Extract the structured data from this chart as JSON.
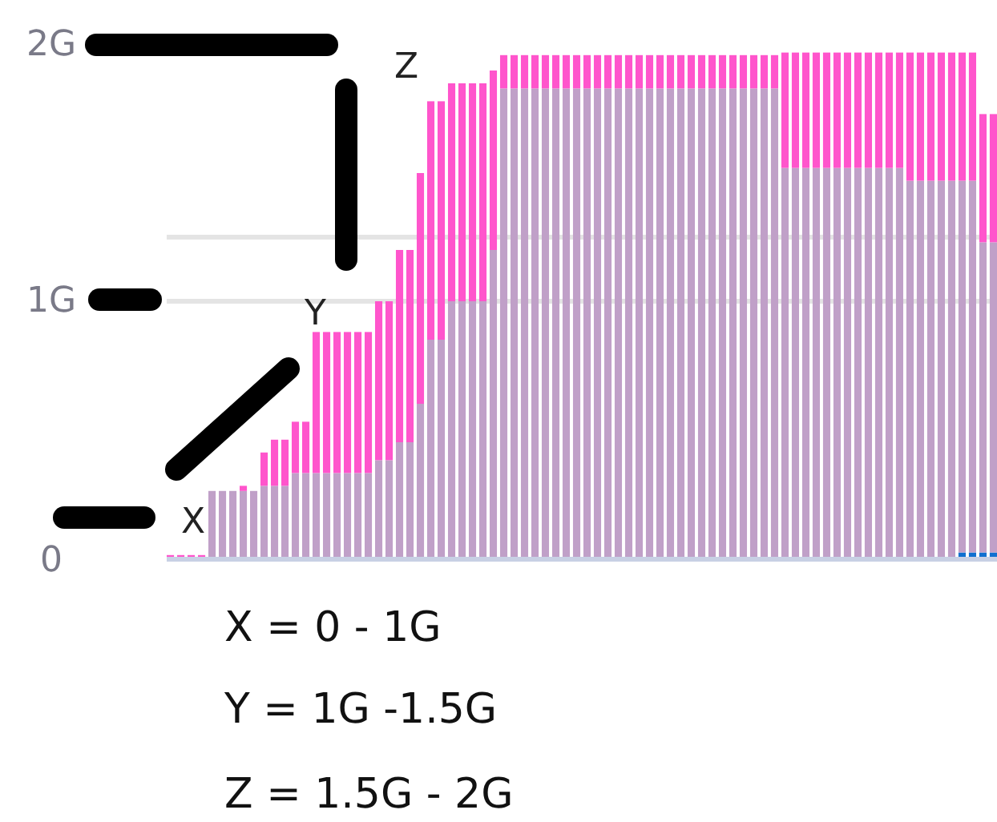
{
  "chart_data": {
    "type": "bar",
    "stacked": true,
    "categories": [
      null,
      null,
      null,
      null,
      null,
      null,
      null,
      null,
      null,
      null,
      null,
      null,
      null,
      null,
      null,
      null,
      null,
      null,
      null,
      null,
      null,
      null,
      null,
      null,
      null,
      null,
      null,
      null,
      null,
      null,
      null,
      null,
      null,
      null,
      null,
      null,
      null,
      null,
      null,
      null,
      null,
      null,
      null,
      null,
      null,
      null,
      null,
      null,
      null,
      null,
      null,
      null,
      null,
      null,
      null,
      null,
      null,
      null,
      null,
      null,
      null,
      null,
      null,
      null,
      null,
      null,
      null,
      null,
      null,
      null,
      null,
      null,
      null,
      null,
      null,
      null,
      null,
      null,
      null,
      null
    ],
    "series": [
      {
        "color": "#1070d0",
        "values": [
          0,
          0,
          0,
          0,
          0,
          0,
          0,
          0,
          0,
          0,
          0,
          0,
          0,
          0,
          0,
          0,
          0,
          0,
          0,
          0,
          0,
          0,
          0,
          0,
          0,
          0,
          0,
          0,
          0,
          0,
          0,
          0,
          0,
          0,
          0,
          0,
          0,
          0,
          0,
          0,
          0,
          0,
          0,
          0,
          0,
          0,
          0,
          0,
          0,
          0,
          0,
          0,
          0,
          0,
          0,
          0,
          0,
          0,
          0,
          0,
          0,
          0,
          0,
          0,
          0,
          0,
          0,
          0,
          0,
          0,
          0,
          0,
          0,
          0,
          0,
          0,
          0.02,
          0.02,
          0.02,
          0.02
        ]
      },
      {
        "color": "#c0a0c8",
        "values": [
          0,
          0,
          0,
          0,
          0.26,
          0.26,
          0.26,
          0.26,
          0.26,
          0.28,
          0.28,
          0.28,
          0.33,
          0.33,
          0.33,
          0.33,
          0.33,
          0.33,
          0.33,
          0.33,
          0.38,
          0.38,
          0.45,
          0.45,
          0.6,
          0.85,
          0.85,
          1.0,
          1.0,
          1.0,
          1.0,
          1.2,
          1.83,
          1.83,
          1.83,
          1.83,
          1.83,
          1.83,
          1.83,
          1.83,
          1.83,
          1.83,
          1.83,
          1.83,
          1.83,
          1.83,
          1.83,
          1.83,
          1.83,
          1.83,
          1.83,
          1.83,
          1.83,
          1.83,
          1.83,
          1.83,
          1.83,
          1.83,
          1.83,
          1.52,
          1.52,
          1.52,
          1.52,
          1.52,
          1.52,
          1.52,
          1.52,
          1.52,
          1.52,
          1.52,
          1.52,
          1.47,
          1.47,
          1.47,
          1.47,
          1.47,
          1.45,
          1.45,
          1.21,
          1.21
        ]
      },
      {
        "color": "#ff55cc",
        "values": [
          0.01,
          0.01,
          0.01,
          0.01,
          0,
          0,
          0,
          0.02,
          0,
          0.13,
          0.18,
          0.18,
          0.2,
          0.2,
          0.55,
          0.55,
          0.55,
          0.55,
          0.55,
          0.55,
          0.62,
          0.62,
          0.75,
          0.75,
          0.9,
          0.93,
          0.93,
          0.85,
          0.85,
          0.85,
          0.85,
          0.7,
          0.13,
          0.13,
          0.13,
          0.13,
          0.13,
          0.13,
          0.13,
          0.13,
          0.13,
          0.13,
          0.13,
          0.13,
          0.13,
          0.13,
          0.13,
          0.13,
          0.13,
          0.13,
          0.13,
          0.13,
          0.13,
          0.13,
          0.13,
          0.13,
          0.13,
          0.13,
          0.13,
          0.45,
          0.45,
          0.45,
          0.45,
          0.45,
          0.45,
          0.45,
          0.45,
          0.45,
          0.45,
          0.45,
          0.45,
          0.5,
          0.5,
          0.5,
          0.5,
          0.5,
          0.5,
          0.5,
          0.5,
          0.5
        ]
      }
    ],
    "ylim": [
      0,
      2
    ],
    "yticks": [
      {
        "value": 0,
        "label": "0"
      },
      {
        "value": 1,
        "label": "1G"
      },
      {
        "value": 2,
        "label": "2G"
      }
    ],
    "ref_lines": [
      {
        "axis": "y",
        "value": 1,
        "color": "#e4e4e4"
      },
      {
        "axis": "y",
        "value": 1.25,
        "color": "#e4e4e4"
      }
    ],
    "annotations": [
      "X",
      "Y",
      "Z",
      "X = 0 - 1G",
      "Y = 1G -1.5G",
      "Z = 1.5G - 2G"
    ]
  }
}
